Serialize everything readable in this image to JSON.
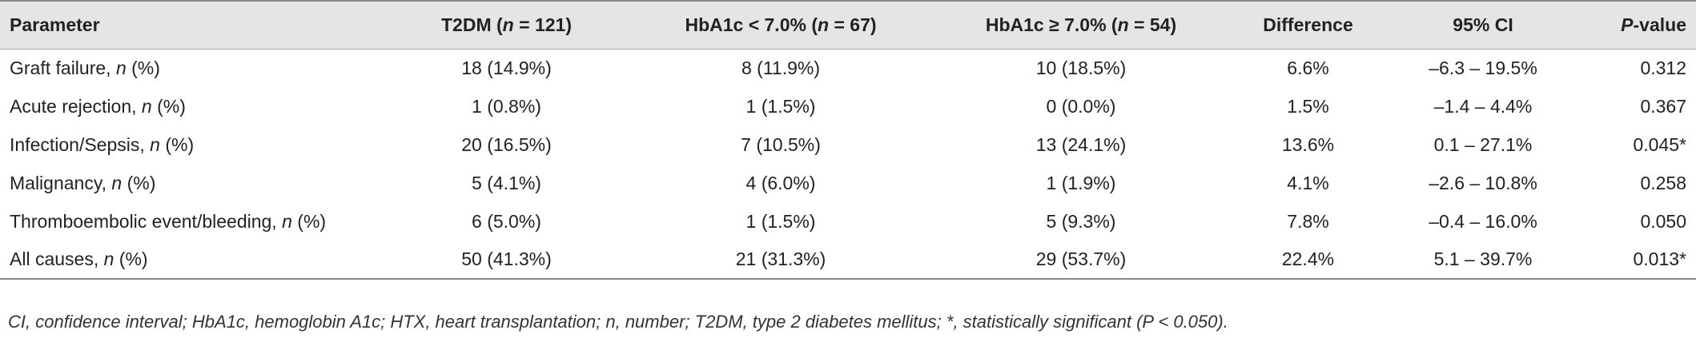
{
  "table": {
    "header": [
      [
        "Parameter"
      ],
      [
        "T2DM (",
        "n",
        " = 121)"
      ],
      [
        "HbA1c < 7.0% (",
        "n",
        " = 67)"
      ],
      [
        "HbA1c ≥ 7.0% (",
        "n",
        " = 54)"
      ],
      [
        "Difference"
      ],
      [
        "95% CI"
      ],
      [
        "",
        "P",
        "-value"
      ]
    ],
    "rows": [
      [
        [
          "Graft failure, ",
          "n",
          " (%)"
        ],
        "18 (14.9%)",
        "8 (11.9%)",
        "10 (18.5%)",
        "6.6%",
        "–6.3 – 19.5%",
        "0.312"
      ],
      [
        [
          "Acute rejection, ",
          "n",
          " (%)"
        ],
        "1 (0.8%)",
        "1 (1.5%)",
        "0 (0.0%)",
        "1.5%",
        "–1.4 – 4.4%",
        "0.367"
      ],
      [
        [
          "Infection/Sepsis, ",
          "n",
          " (%)"
        ],
        "20 (16.5%)",
        "7 (10.5%)",
        "13 (24.1%)",
        "13.6%",
        "0.1 – 27.1%",
        "0.045*"
      ],
      [
        [
          "Malignancy, ",
          "n",
          " (%)"
        ],
        "5 (4.1%)",
        "4 (6.0%)",
        "1 (1.9%)",
        "4.1%",
        "–2.6 – 10.8%",
        "0.258"
      ],
      [
        [
          "Thromboembolic event/bleeding, ",
          "n",
          " (%)"
        ],
        "6 (5.0%)",
        "1 (1.5%)",
        "5 (9.3%)",
        "7.8%",
        "–0.4 – 16.0%",
        "0.050"
      ],
      [
        [
          "All causes, ",
          "n",
          " (%)"
        ],
        "50 (41.3%)",
        "21 (31.3%)",
        "29 (53.7%)",
        "22.4%",
        "5.1 – 39.7%",
        "0.013*"
      ]
    ],
    "footnote": "CI, confidence interval; HbA1c, hemoglobin A1c; HTX, heart transplantation; n, number; T2DM, type 2 diabetes mellitus; *, statistically significant (P < 0.050)."
  }
}
